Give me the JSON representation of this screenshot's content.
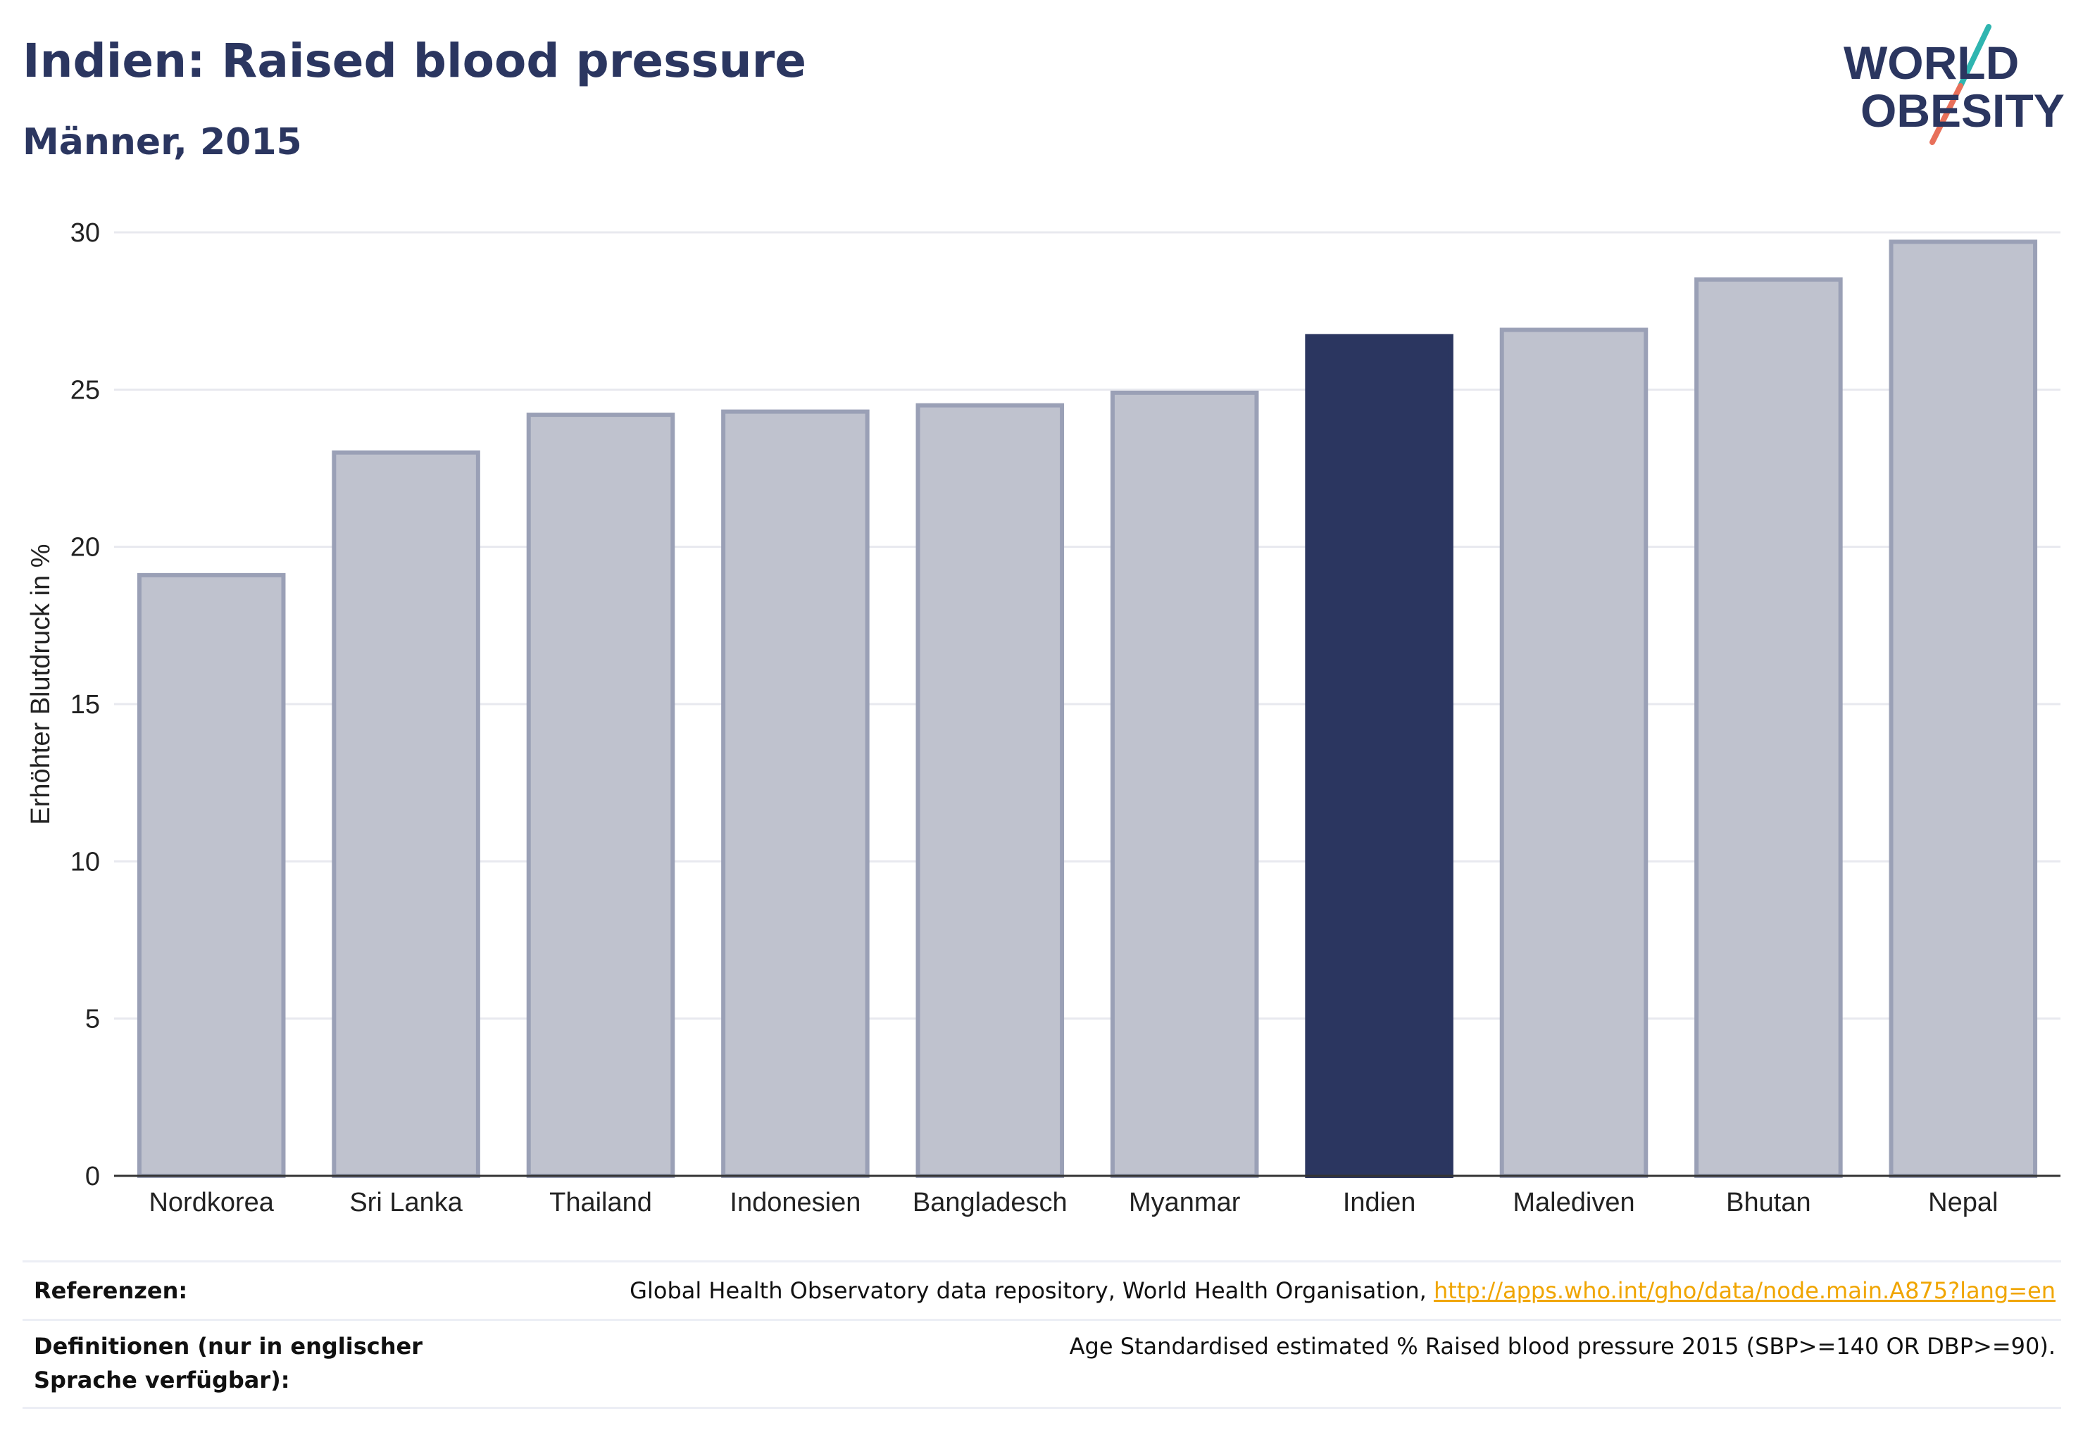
{
  "header": {
    "title": "Indien: Raised blood pressure",
    "subtitle": "Männer, 2015",
    "logo_line1": "WORLD",
    "logo_line2": "OBESITY"
  },
  "chart_data": {
    "type": "bar",
    "title": "Indien: Raised blood pressure",
    "subtitle": "Männer, 2015",
    "ylabel": "Erhöhter Blutdruck in %",
    "xlabel": "",
    "ylim": [
      0,
      30
    ],
    "yticks": [
      0,
      5,
      10,
      15,
      20,
      25,
      30
    ],
    "grid": true,
    "categories": [
      "Nordkorea",
      "Sri Lanka",
      "Thailand",
      "Indonesien",
      "Bangladesch",
      "Myanmar",
      "Indien",
      "Malediven",
      "Bhutan",
      "Nepal"
    ],
    "values": [
      19.1,
      23.0,
      24.2,
      24.3,
      24.5,
      24.9,
      26.7,
      26.9,
      28.5,
      29.7
    ],
    "highlight": "Indien",
    "colors": {
      "highlight": "#2b3660",
      "default_fill": "#bfc2ce",
      "default_stroke": "#9aa0b6",
      "grid": "#e8e9ef",
      "axis": "#333333"
    }
  },
  "footer": {
    "references_label": "Referenzen:",
    "references_text": "Global Health Observatory data repository, World Health Organisation, ",
    "references_link": "http://apps.who.int/gho/data/node.main.A875?lang=en",
    "definitions_label": "Definitionen (nur in englischer Sprache verfügbar):",
    "definitions_text": "Age Standardised estimated % Raised blood pressure 2015 (SBP>=140 OR DBP>=90)."
  }
}
